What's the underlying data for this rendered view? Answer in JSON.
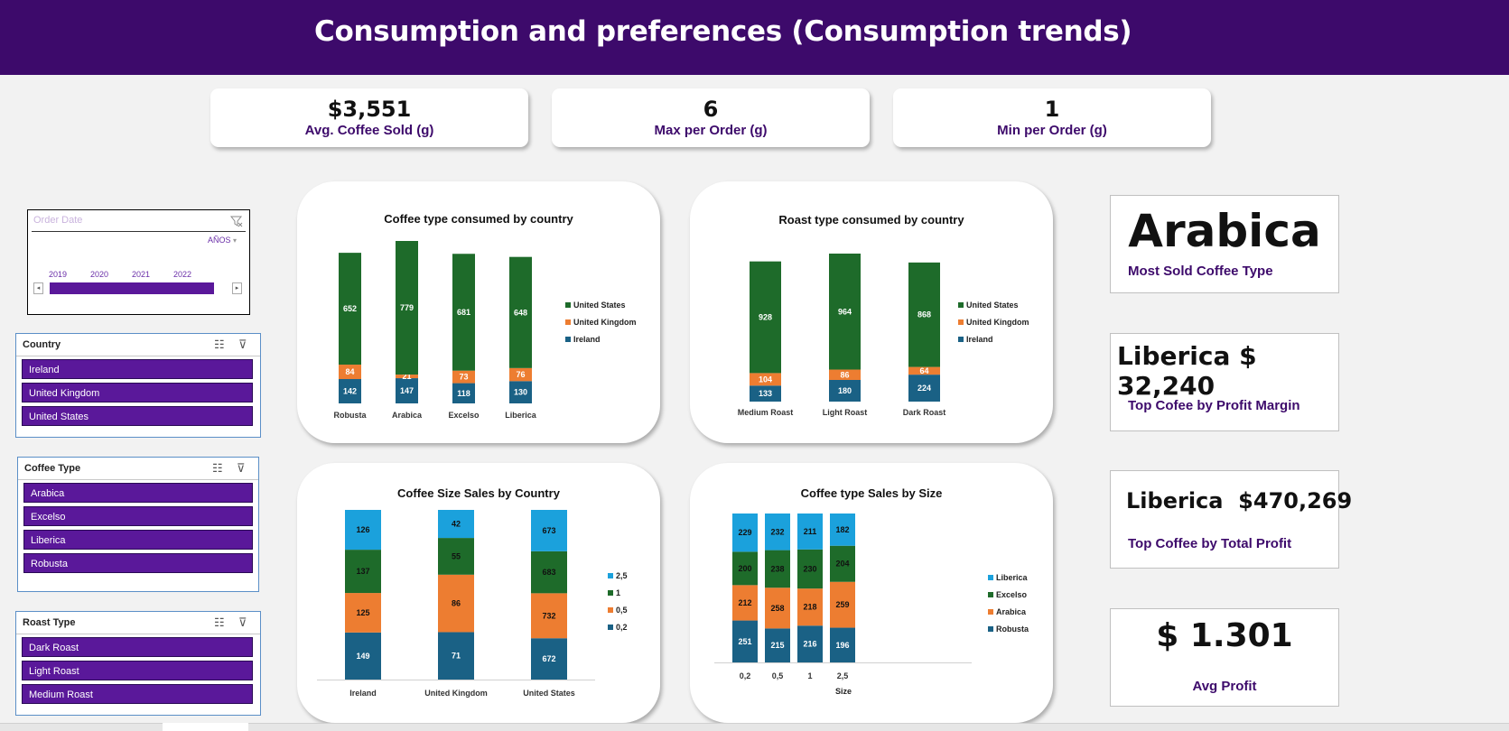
{
  "header": {
    "title": "Consumption and preferences (Consumption trends)"
  },
  "kpis": [
    {
      "value": "$3,551",
      "label": "Avg. Coffee Sold  (g)"
    },
    {
      "value": "6",
      "label": "Max per Order (g)"
    },
    {
      "value": "1",
      "label": "Min per Order (g)"
    }
  ],
  "timeline": {
    "placeholder": "Order Date",
    "period": "AÑOS",
    "years": [
      "2019",
      "2020",
      "2021",
      "2022"
    ]
  },
  "slicers": {
    "country": {
      "title": "Country",
      "items": [
        "Ireland",
        "United Kingdom",
        "United States"
      ]
    },
    "coffee_type": {
      "title": "Coffee Type",
      "items": [
        "Arabica",
        "Excelso",
        "Liberica",
        "Robusta"
      ]
    },
    "roast_type": {
      "title": "Roast Type",
      "items": [
        "Dark Roast",
        "Light Roast",
        "Medium Roast"
      ]
    }
  },
  "stats": {
    "most_sold": {
      "value": "Arabica",
      "label": "Most Sold Coffee Type"
    },
    "top_margin": {
      "value": "Liberica $ 32,240",
      "label": "Top Cofee by Profit Margin"
    },
    "top_profit": {
      "value": "Liberica  $470,269",
      "label": "Top Coffee by Total Profit"
    },
    "avg_profit": {
      "value": "$ 1.301",
      "label": "Avg Profit"
    }
  },
  "chart_data": [
    {
      "type": "bar",
      "title": "Coffee type consumed by country",
      "stacked": true,
      "categories": [
        "Robusta",
        "Arabica",
        "Excelso",
        "Liberica"
      ],
      "series": [
        {
          "name": "Ireland",
          "values": [
            142,
            147,
            118,
            130
          ],
          "color": "#1a6185"
        },
        {
          "name": "United Kingdom",
          "values": [
            84,
            21,
            73,
            76
          ],
          "color": "#ed7d31"
        },
        {
          "name": "United States",
          "values": [
            652,
            779,
            681,
            648
          ],
          "color": "#1e6b2a"
        }
      ],
      "legend": "right"
    },
    {
      "type": "bar",
      "title": "Roast type consumed by country",
      "stacked": true,
      "categories": [
        "Medium Roast",
        "Light Roast",
        "Dark Roast"
      ],
      "series": [
        {
          "name": "Ireland",
          "values": [
            133,
            180,
            224
          ],
          "color": "#1a6185"
        },
        {
          "name": "United Kingdom",
          "values": [
            104,
            86,
            64
          ],
          "color": "#ed7d31"
        },
        {
          "name": "United States",
          "values": [
            928,
            964,
            868
          ],
          "color": "#1e6b2a"
        }
      ],
      "legend": "right"
    },
    {
      "type": "bar",
      "title": "Coffee Size Sales by Country",
      "stacked": true,
      "percent": true,
      "categories": [
        "Ireland",
        "United Kingdom",
        "United States"
      ],
      "series": [
        {
          "name": "0,2",
          "values": [
            149,
            71,
            672
          ],
          "color": "#1a6185"
        },
        {
          "name": "0,5",
          "values": [
            125,
            86,
            732
          ],
          "color": "#ed7d31"
        },
        {
          "name": "1",
          "values": [
            137,
            55,
            683
          ],
          "color": "#1e6b2a"
        },
        {
          "name": "2,5",
          "values": [
            126,
            42,
            673
          ],
          "color": "#1ba1dc"
        }
      ],
      "legend": "right"
    },
    {
      "type": "bar",
      "title": "Coffee type Sales by Size",
      "stacked": true,
      "percent": true,
      "xlabel": "Size",
      "categories": [
        "0,2",
        "0,5",
        "1",
        "2,5"
      ],
      "series": [
        {
          "name": "Robusta",
          "values": [
            251,
            215,
            216,
            196
          ],
          "color": "#1a6185"
        },
        {
          "name": "Arabica",
          "values": [
            212,
            258,
            218,
            259
          ],
          "color": "#ed7d31"
        },
        {
          "name": "Excelso",
          "values": [
            200,
            238,
            230,
            204
          ],
          "color": "#1e6b2a"
        },
        {
          "name": "Liberica",
          "values": [
            229,
            232,
            211,
            182
          ],
          "color": "#1ba1dc"
        }
      ],
      "legend": "right"
    }
  ]
}
